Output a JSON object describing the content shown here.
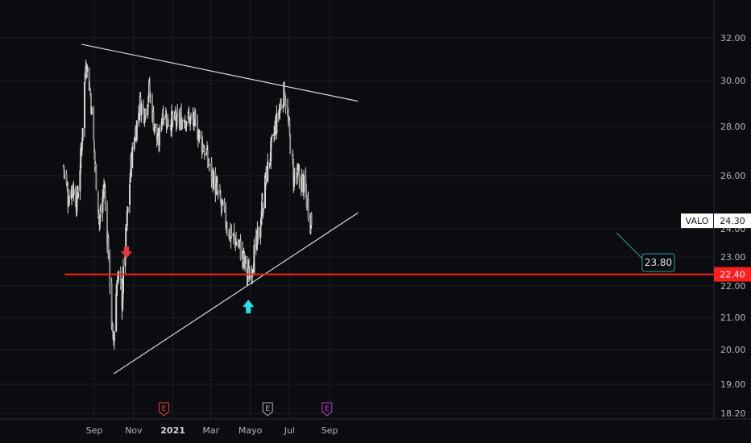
{
  "chart_data": {
    "type": "candlestick",
    "symbol": "VALO",
    "last_price": "24.30",
    "support_label": "22.40",
    "support_value": 22.4,
    "target_label": "23.80",
    "target_value": 23.8,
    "y_ticks": [
      "32.00",
      "30.00",
      "28.00",
      "26.00",
      "24.00",
      "23.00",
      "22.00",
      "21.00",
      "20.00",
      "19.00",
      "18.20"
    ],
    "y_tick_values": [
      32,
      30,
      28,
      26,
      24,
      23,
      22,
      21,
      20,
      19,
      18.2
    ],
    "x_ticks": [
      "Sep",
      "Nov",
      "2021",
      "Mar",
      "Mayo",
      "Jul",
      "Sep"
    ],
    "x_tick_bold": [
      false,
      false,
      true,
      false,
      false,
      false,
      false
    ],
    "price_path": [
      {
        "t": "2020-07-15",
        "v": 26.4
      },
      {
        "t": "2020-07-22",
        "v": 25.2
      },
      {
        "t": "2020-07-29",
        "v": 25.6
      },
      {
        "t": "2020-08-05",
        "v": 25.0
      },
      {
        "t": "2020-08-12",
        "v": 27.0
      },
      {
        "t": "2020-08-19",
        "v": 31.0
      },
      {
        "t": "2020-08-26",
        "v": 29.4
      },
      {
        "t": "2020-09-02",
        "v": 26.5
      },
      {
        "t": "2020-09-09",
        "v": 24.2
      },
      {
        "t": "2020-09-16",
        "v": 25.6
      },
      {
        "t": "2020-09-23",
        "v": 23.2
      },
      {
        "t": "2020-09-30",
        "v": 20.0
      },
      {
        "t": "2020-10-07",
        "v": 22.5
      },
      {
        "t": "2020-10-14",
        "v": 21.6
      },
      {
        "t": "2020-10-21",
        "v": 24.0
      },
      {
        "t": "2020-10-28",
        "v": 26.5
      },
      {
        "t": "2020-11-04",
        "v": 27.8
      },
      {
        "t": "2020-11-11",
        "v": 29.0
      },
      {
        "t": "2020-11-18",
        "v": 28.6
      },
      {
        "t": "2020-11-25",
        "v": 29.6
      },
      {
        "t": "2020-12-02",
        "v": 28.2
      },
      {
        "t": "2020-12-09",
        "v": 27.2
      },
      {
        "t": "2020-12-16",
        "v": 28.7
      },
      {
        "t": "2020-12-23",
        "v": 28.3
      },
      {
        "t": "2021-01-06",
        "v": 28.2
      },
      {
        "t": "2021-01-20",
        "v": 28.4
      },
      {
        "t": "2021-02-03",
        "v": 28.2
      },
      {
        "t": "2021-02-17",
        "v": 27.2
      },
      {
        "t": "2021-03-03",
        "v": 26.0
      },
      {
        "t": "2021-03-17",
        "v": 24.8
      },
      {
        "t": "2021-03-31",
        "v": 23.8
      },
      {
        "t": "2021-04-14",
        "v": 23.4
      },
      {
        "t": "2021-04-28",
        "v": 22.3
      },
      {
        "t": "2021-05-12",
        "v": 23.5
      },
      {
        "t": "2021-05-26",
        "v": 26.0
      },
      {
        "t": "2021-06-09",
        "v": 28.0
      },
      {
        "t": "2021-06-23",
        "v": 29.6
      },
      {
        "t": "2021-07-07",
        "v": 26.0
      },
      {
        "t": "2021-07-21",
        "v": 25.8
      },
      {
        "t": "2021-07-28",
        "v": 25.0
      },
      {
        "t": "2021-08-04",
        "v": 24.3
      }
    ],
    "trendlines": [
      {
        "name": "upper",
        "from": {
          "t": "2020-08-12",
          "v": 31.7
        },
        "to": {
          "t": "2021-10-15",
          "v": 29.1
        }
      },
      {
        "name": "lower",
        "from": {
          "t": "2020-10-01",
          "v": 19.3
        },
        "to": {
          "t": "2021-10-15",
          "v": 24.6
        }
      }
    ],
    "arrow_down_date": "2020-10-21",
    "arrow_up_date": "2021-04-28",
    "earnings_markers": [
      {
        "label": "E",
        "date": "2020-12-18",
        "color": "#f44336"
      },
      {
        "label": "E",
        "date": "2021-05-28",
        "color": "#b2b5be"
      },
      {
        "label": "E",
        "date": "2021-08-28",
        "color": "#c840e0"
      }
    ],
    "colors": {
      "support": "#ff1f1f",
      "trendline": "#d9d9d9",
      "candles": "#d8d8d8",
      "arrow_down": "#e53935",
      "arrow_up": "#26e0ea",
      "target_box": "#1fa3a3"
    }
  }
}
